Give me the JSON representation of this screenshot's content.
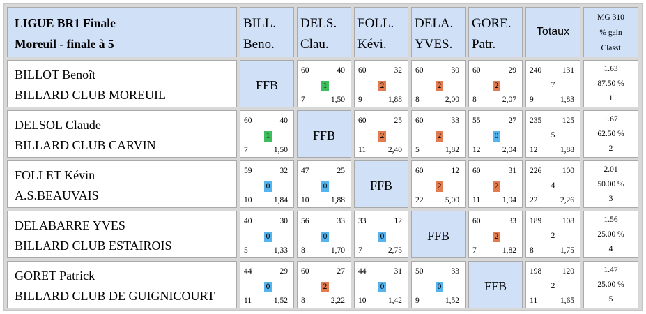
{
  "header": {
    "title_line1": "LIGUE BR1 Finale",
    "title_line2": "Moreuil - finale à 5",
    "columns": [
      {
        "l1": "BILL.",
        "l2": "Beno."
      },
      {
        "l1": "DELS.",
        "l2": "Clau."
      },
      {
        "l1": "FOLL.",
        "l2": "Kévi."
      },
      {
        "l1": "DELA.",
        "l2": "YVES."
      },
      {
        "l1": "GORE.",
        "l2": "Patr."
      }
    ],
    "totaux": "Totaux",
    "mg_line1": "MG 310",
    "mg_line2": "% gain",
    "mg_line3": "Classt"
  },
  "players": [
    {
      "name": "BILLOT Benoît",
      "club": "BILLARD CLUB MOREUIL",
      "cells": [
        {
          "ffb": "FFB"
        },
        {
          "tl": "60",
          "tr": "40",
          "badge": "1",
          "color": "green",
          "bl": "7",
          "br": "1,50"
        },
        {
          "tl": "60",
          "tr": "32",
          "badge": "2",
          "color": "orange",
          "bl": "9",
          "br": "1,88"
        },
        {
          "tl": "60",
          "tr": "30",
          "badge": "2",
          "color": "orange",
          "bl": "8",
          "br": "2,00"
        },
        {
          "tl": "60",
          "tr": "29",
          "badge": "2",
          "color": "orange",
          "bl": "8",
          "br": "2,07"
        }
      ],
      "totals": {
        "tl": "240",
        "tr": "131",
        "mid": "7",
        "bl": "9",
        "br": "1,83"
      },
      "mg": "1.63",
      "pct": "87.50 %",
      "rank": "1"
    },
    {
      "name": "DELSOL Claude",
      "club": "BILLARD CLUB CARVIN",
      "cells": [
        {
          "tl": "60",
          "tr": "40",
          "badge": "1",
          "color": "green",
          "bl": "7",
          "br": "1,50"
        },
        {
          "ffb": "FFB"
        },
        {
          "tl": "60",
          "tr": "25",
          "badge": "2",
          "color": "orange",
          "bl": "11",
          "br": "2,40"
        },
        {
          "tl": "60",
          "tr": "33",
          "badge": "2",
          "color": "orange",
          "bl": "5",
          "br": "1,82"
        },
        {
          "tl": "55",
          "tr": "27",
          "badge": "0",
          "color": "blue",
          "bl": "12",
          "br": "2,04"
        }
      ],
      "totals": {
        "tl": "235",
        "tr": "125",
        "mid": "5",
        "bl": "12",
        "br": "1,88"
      },
      "mg": "1.67",
      "pct": "62.50 %",
      "rank": "2"
    },
    {
      "name": "FOLLET Kévin",
      "club": "A.S.BEAUVAIS",
      "cells": [
        {
          "tl": "59",
          "tr": "32",
          "badge": "0",
          "color": "blue",
          "bl": "10",
          "br": "1,84"
        },
        {
          "tl": "47",
          "tr": "25",
          "badge": "0",
          "color": "blue",
          "bl": "10",
          "br": "1,88"
        },
        {
          "ffb": "FFB"
        },
        {
          "tl": "60",
          "tr": "12",
          "badge": "2",
          "color": "orange",
          "bl": "22",
          "br": "5,00"
        },
        {
          "tl": "60",
          "tr": "31",
          "badge": "2",
          "color": "orange",
          "bl": "11",
          "br": "1,94"
        }
      ],
      "totals": {
        "tl": "226",
        "tr": "100",
        "mid": "4",
        "bl": "22",
        "br": "2,26"
      },
      "mg": "2.01",
      "pct": "50.00 %",
      "rank": "3"
    },
    {
      "name": "DELABARRE YVES",
      "club": "BILLARD CLUB ESTAIROIS",
      "cells": [
        {
          "tl": "40",
          "tr": "30",
          "badge": "0",
          "color": "blue",
          "bl": "5",
          "br": "1,33"
        },
        {
          "tl": "56",
          "tr": "33",
          "badge": "0",
          "color": "blue",
          "bl": "8",
          "br": "1,70"
        },
        {
          "tl": "33",
          "tr": "12",
          "badge": "0",
          "color": "blue",
          "bl": "7",
          "br": "2,75"
        },
        {
          "ffb": "FFB"
        },
        {
          "tl": "60",
          "tr": "33",
          "badge": "2",
          "color": "orange",
          "bl": "7",
          "br": "1,82"
        }
      ],
      "totals": {
        "tl": "189",
        "tr": "108",
        "mid": "2",
        "bl": "8",
        "br": "1,75"
      },
      "mg": "1.56",
      "pct": "25.00 %",
      "rank": "4"
    },
    {
      "name": "GORET Patrick",
      "club": "BILLARD CLUB DE GUIGNICOURT",
      "cells": [
        {
          "tl": "44",
          "tr": "29",
          "badge": "0",
          "color": "blue",
          "bl": "11",
          "br": "1,52"
        },
        {
          "tl": "60",
          "tr": "27",
          "badge": "2",
          "color": "orange",
          "bl": "8",
          "br": "2,22"
        },
        {
          "tl": "44",
          "tr": "31",
          "badge": "0",
          "color": "blue",
          "bl": "10",
          "br": "1,42"
        },
        {
          "tl": "50",
          "tr": "33",
          "badge": "0",
          "color": "blue",
          "bl": "9",
          "br": "1,52"
        },
        {
          "ffb": "FFB"
        }
      ],
      "totals": {
        "tl": "198",
        "tr": "120",
        "mid": "2",
        "bl": "11",
        "br": "1,65"
      },
      "mg": "1.47",
      "pct": "25.00 %",
      "rank": "5"
    }
  ],
  "colors": {
    "green": "#3dbd5b",
    "orange": "#e27c50",
    "blue": "#55b4ee",
    "header_bg": "#cfe0f7"
  }
}
